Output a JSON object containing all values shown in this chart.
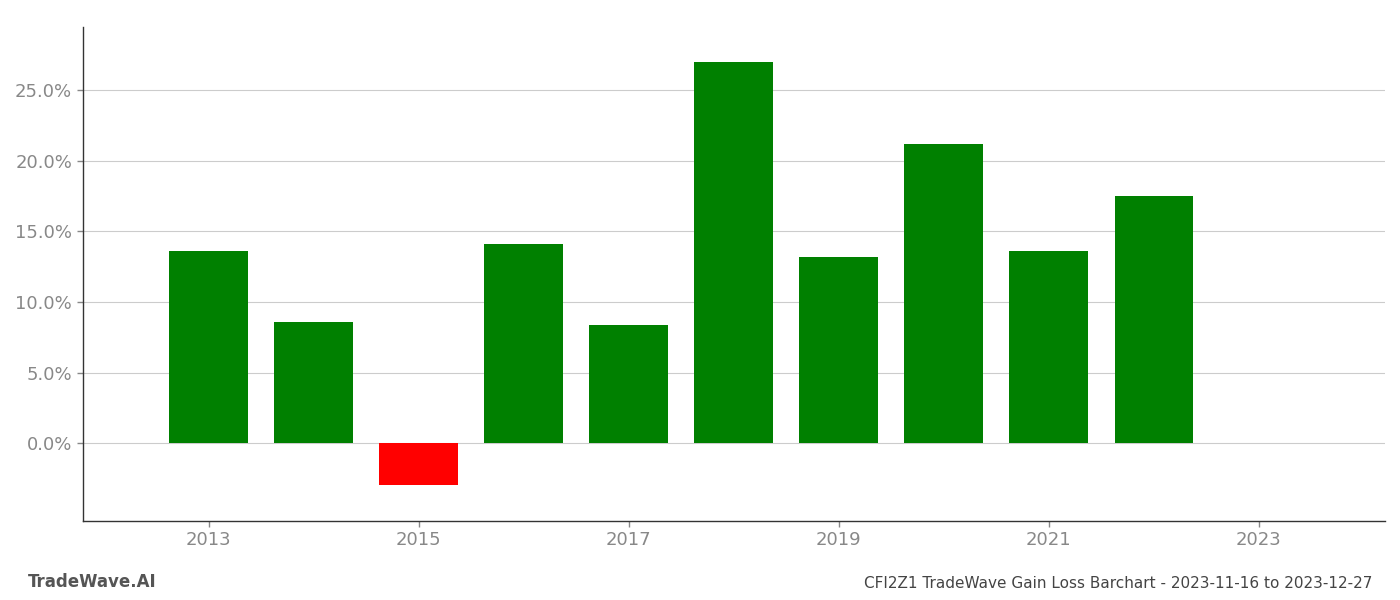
{
  "years": [
    2013,
    2014,
    2015,
    2016,
    2017,
    2018,
    2019,
    2020,
    2021,
    2022
  ],
  "values": [
    0.136,
    0.086,
    -0.03,
    0.141,
    0.084,
    0.27,
    0.132,
    0.212,
    0.136,
    0.175
  ],
  "bar_colors_positive": "#008000",
  "bar_colors_negative": "#ff0000",
  "title": "CFI2Z1 TradeWave Gain Loss Barchart - 2023-11-16 to 2023-12-27",
  "footer_left": "TradeWave.AI",
  "background_color": "#ffffff",
  "grid_color": "#cccccc",
  "spine_color": "#333333",
  "tick_label_color": "#888888",
  "title_color": "#444444",
  "footer_color": "#555555",
  "bar_width": 0.75,
  "ylim_min": -0.055,
  "ylim_max": 0.295,
  "xlim_min": 2011.8,
  "xlim_max": 2024.2,
  "xticks": [
    2013,
    2015,
    2017,
    2019,
    2021,
    2023
  ],
  "yticks": [
    0.0,
    0.05,
    0.1,
    0.15,
    0.2,
    0.25
  ],
  "title_fontsize": 11,
  "footer_fontsize": 12,
  "tick_fontsize": 13
}
